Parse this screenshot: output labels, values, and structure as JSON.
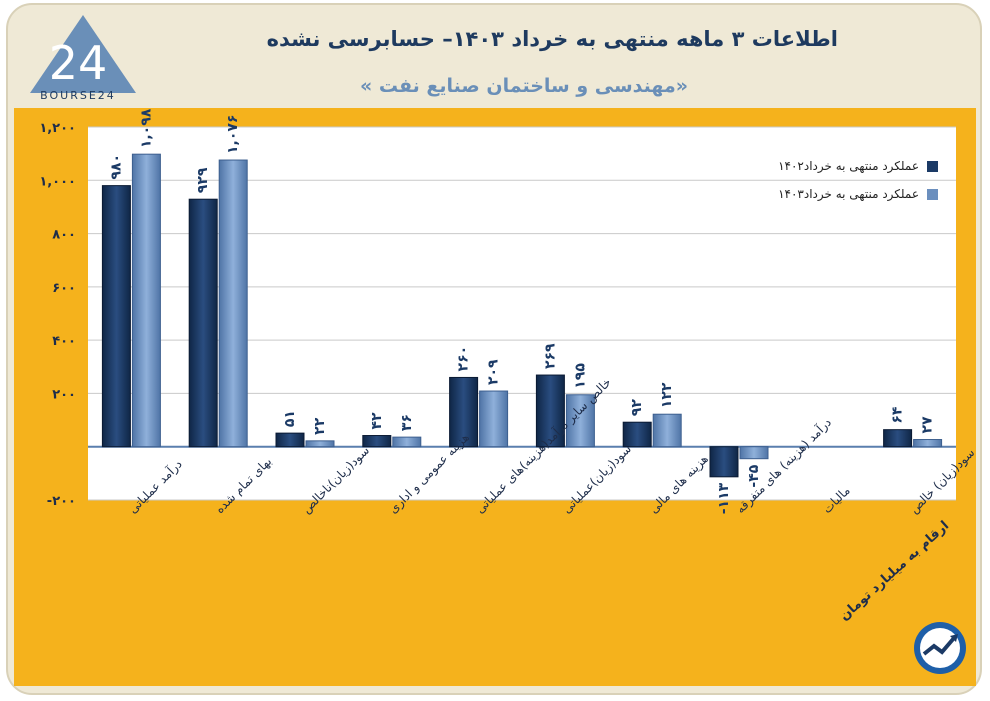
{
  "header": {
    "title": "اطلاعات ۳ ماهه منتهی به خرداد ۱۴۰۳– حسابرسی نشده",
    "subtitle": "«مهندسی و ساختمان صنایع نفت »"
  },
  "logo": {
    "text": "BOURSE24"
  },
  "note": "ارقام به میلیارد تومان",
  "colors": {
    "panel": "#f5b21c",
    "series1": "#1b3a66",
    "series2": "#6b8fbe",
    "axis": "#5a7fae"
  },
  "chart_data": {
    "type": "bar",
    "categories": [
      "درآمد عملیاتی",
      "بهای تمام شده",
      "سود(زیان)ناخالص",
      "هزینه عمومی و اداری",
      "خالص سایر درآمد(هزینه)های عملیاتی",
      "سود(زیان)عملیاتی",
      "هزینه های مالی",
      "درآمد (هزینه) های متفرقه",
      "مالیات",
      "سود(زیان) خالص"
    ],
    "series": [
      {
        "name": "عملکرد منتهی به خرداد۱۴۰۲",
        "values": [
          980,
          929,
          51,
          42,
          260,
          269,
          92,
          -113,
          0,
          64
        ],
        "labels": [
          "۹۸۰",
          "۹۲۹",
          "۵۱",
          "۴۲",
          "۲۶۰",
          "۲۶۹",
          "۹۲",
          "-۱۱۳",
          "",
          "۶۴"
        ]
      },
      {
        "name": "عملکرد منتهی به خرداد۱۴۰۳",
        "values": [
          1098,
          1076,
          22,
          36,
          209,
          195,
          122,
          -45,
          0,
          27
        ],
        "labels": [
          "۱,۰۹۸",
          "۱,۰۷۶",
          "۲۲",
          "۳۶",
          "۲۰۹",
          "۱۹۵",
          "۱۲۲",
          "-۴۵",
          "",
          "۲۷"
        ]
      }
    ],
    "yticks": [
      -200,
      200,
      400,
      600,
      800,
      1000,
      1200
    ],
    "ytick_labels": [
      "-۲۰۰",
      "۲۰۰",
      "۴۰۰",
      "۶۰۰",
      "۸۰۰",
      "۱,۰۰۰",
      "۱,۲۰۰"
    ],
    "ylim": [
      -200,
      1200
    ],
    "grid": true,
    "legend_position": "top-right"
  }
}
